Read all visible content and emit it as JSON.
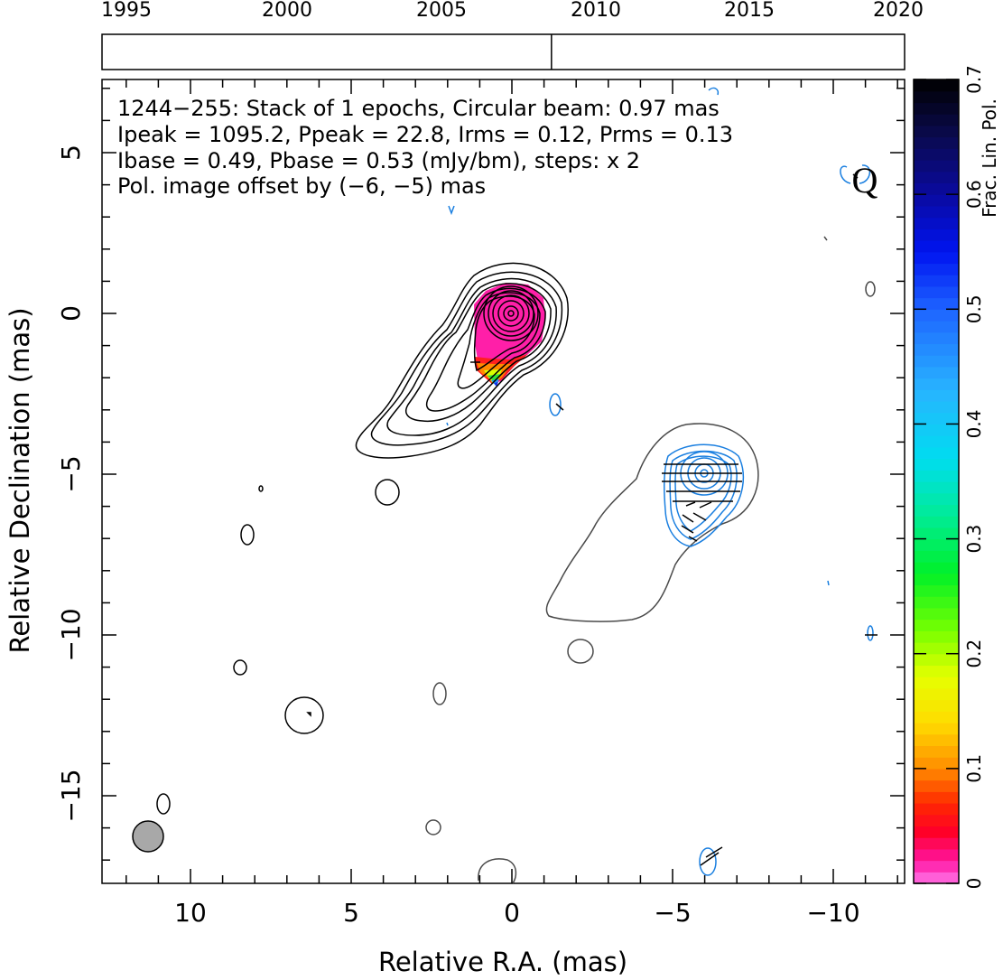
{
  "timeline": {
    "years": [
      "1995",
      "2000",
      "2005",
      "2010",
      "2015",
      "2020"
    ],
    "year_range": [
      1995,
      2020
    ],
    "epochs": [
      2009.0
    ]
  },
  "header": {
    "line1": "1244−255: Stack of 1 epochs, Circular beam: 0.97 mas",
    "line2": "Ipeak = 1095.2, Ppeak = 22.8, Irms = 0.12, Prms = 0.13",
    "line3": "Ibase = 0.49, Pbase = 0.53 (mJy/bm), steps: x 2",
    "line4": "Pol. image offset by (−6, −5) mas",
    "line4_color": "#1a7fe0"
  },
  "band_label": "Q",
  "axes": {
    "xlabel": "Relative R.A. (mas)",
    "ylabel": "Relative Declination (mas)",
    "xlim": [
      12.8,
      -12.2
    ],
    "ylim": [
      -17.8,
      7.3
    ],
    "xticks": [
      "10",
      "5",
      "0",
      "−5",
      "−10"
    ],
    "yticks": [
      "5",
      "0",
      "−5",
      "−10",
      "−15"
    ]
  },
  "colorbar": {
    "label": "Frac. Lin. Pol.",
    "range": [
      0,
      0.7
    ],
    "ticks": [
      "0",
      "0.1",
      "0.2",
      "0.3",
      "0.4",
      "0.5",
      "0.6",
      "0.7"
    ]
  },
  "colors": {
    "stokes_i_contour": "#000000",
    "offset_i_contour": "#4a4a4a",
    "pol_contour": "#1a7fe0",
    "beam_fill": "#a8a8a8"
  },
  "beam_fwhm_mas": 0.97
}
